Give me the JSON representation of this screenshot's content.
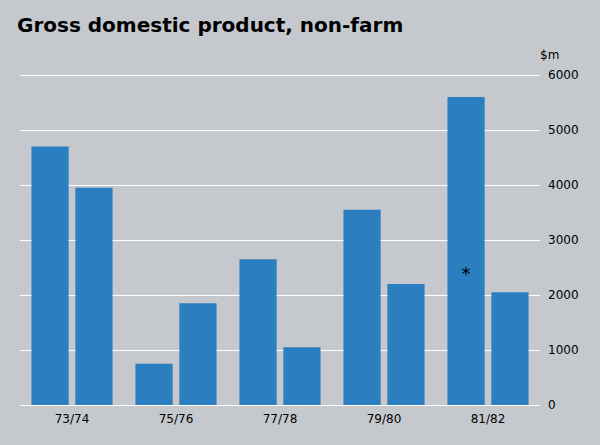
{
  "chart_data": {
    "type": "bar",
    "title": "Gross domestic product, non-farm",
    "ylabel": "$m",
    "categories": [
      "73/74",
      "75/76",
      "77/78",
      "79/80",
      "81/82"
    ],
    "color": "#2b7fc1",
    "series": [
      {
        "values": [
          4700,
          750,
          2650,
          3550,
          5600
        ]
      },
      {
        "values": [
          3950,
          1850,
          1050,
          2200,
          2050
        ]
      }
    ],
    "ylim": [
      0,
      6000
    ],
    "yticks": [
      0,
      1000,
      2000,
      3000,
      4000,
      5000,
      6000
    ],
    "grid": true,
    "annotations": [
      {
        "text": "*",
        "x": "81/82",
        "y": 2400
      }
    ]
  }
}
